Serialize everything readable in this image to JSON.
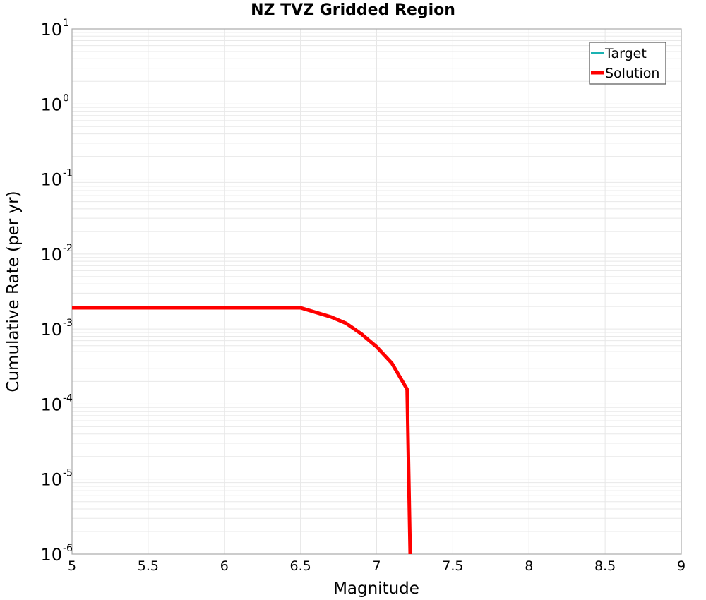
{
  "chart_data": {
    "type": "line",
    "title": "NZ TVZ Gridded Region",
    "xlabel": "Magnitude",
    "ylabel": "Cumulative Rate (per yr)",
    "xlim": [
      5,
      9
    ],
    "ylim": [
      1e-06,
      10
    ],
    "yscale": "log",
    "grid": true,
    "legend_position": "upper right",
    "x_ticks": [
      "5",
      "5.5",
      "6",
      "6.5",
      "7",
      "7.5",
      "8",
      "8.5",
      "9"
    ],
    "y_ticks": [
      {
        "base": "10",
        "exp": "1"
      },
      {
        "base": "10",
        "exp": "0"
      },
      {
        "base": "10",
        "exp": "-1"
      },
      {
        "base": "10",
        "exp": "-2"
      },
      {
        "base": "10",
        "exp": "-3"
      },
      {
        "base": "10",
        "exp": "-4"
      },
      {
        "base": "10",
        "exp": "-5"
      },
      {
        "base": "10",
        "exp": "-6"
      }
    ],
    "series": [
      {
        "name": "Target",
        "color": "#1ab2b2",
        "x": [],
        "y": []
      },
      {
        "name": "Solution",
        "color": "#ff0000",
        "x": [
          5.0,
          5.5,
          6.0,
          6.5,
          6.7,
          6.8,
          6.9,
          7.0,
          7.1,
          7.2,
          7.22
        ],
        "y": [
          0.00192,
          0.00192,
          0.00192,
          0.00192,
          0.00145,
          0.00119,
          0.00086,
          0.00058,
          0.00035,
          0.000157,
          1e-06
        ]
      }
    ]
  }
}
